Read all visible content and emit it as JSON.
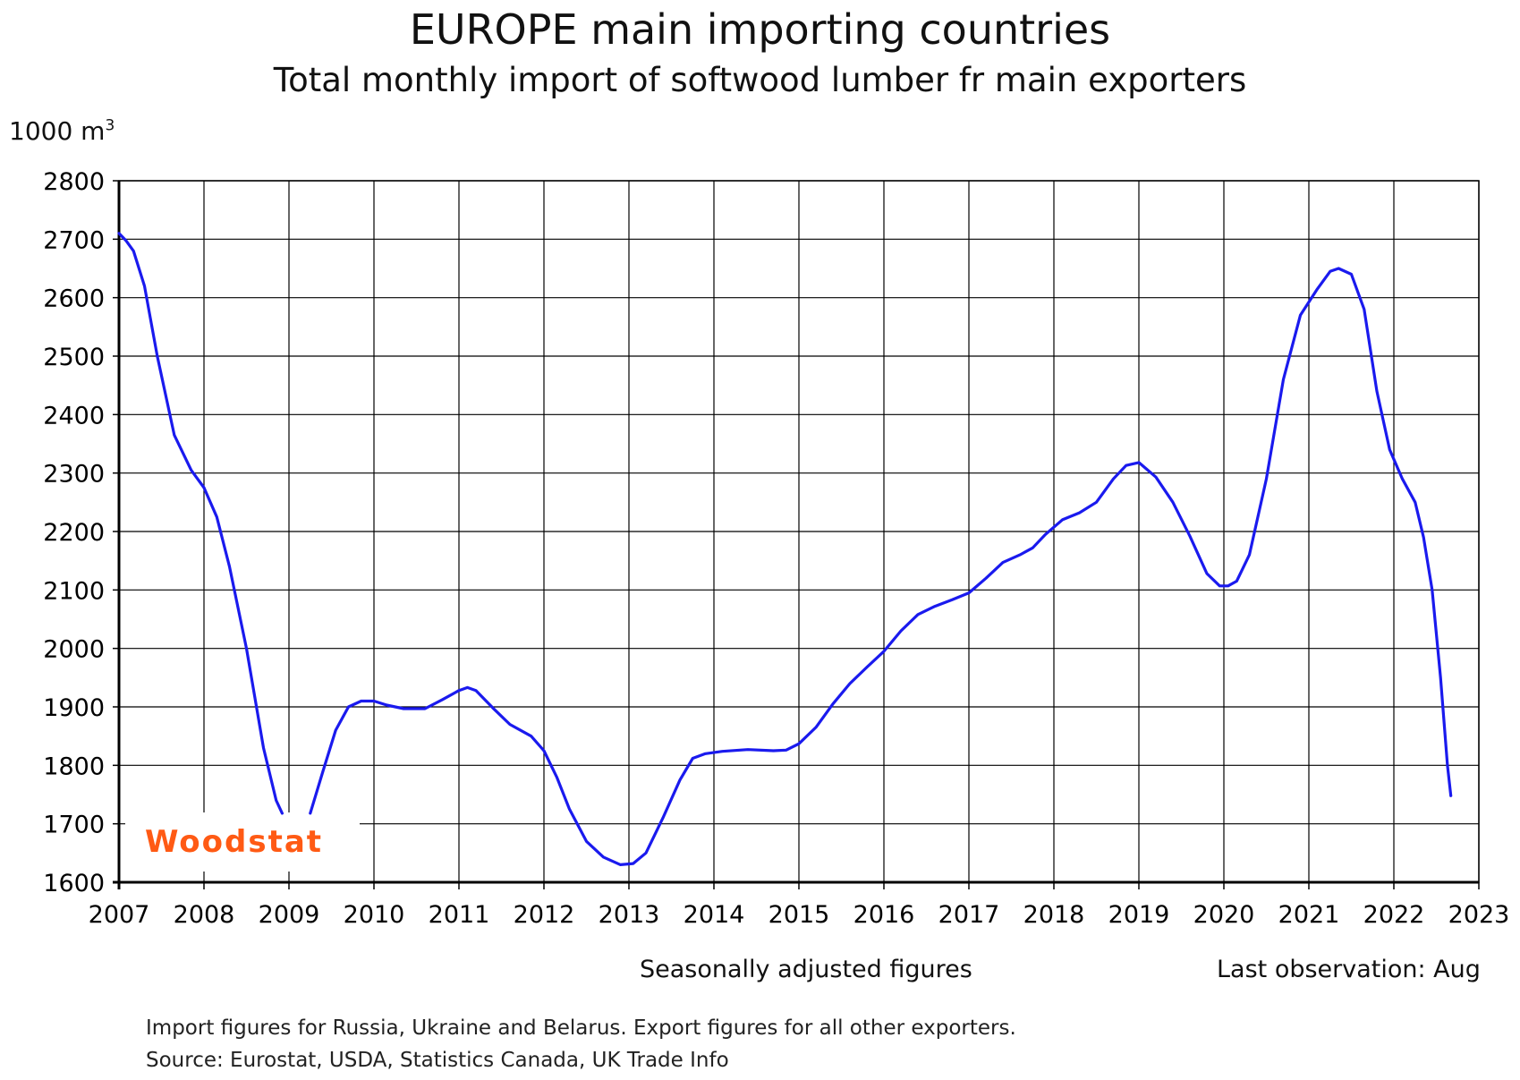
{
  "chart_data": {
    "type": "line",
    "title": "EUROPE main importing countries",
    "subtitle": "Total monthly import of softwood lumber fr main exporters",
    "ylabel": "1000 m",
    "ylabel_superscript": "3",
    "xlim": [
      2007,
      2023
    ],
    "ylim": [
      1600,
      2800
    ],
    "x_ticks": [
      2007,
      2008,
      2009,
      2010,
      2011,
      2012,
      2013,
      2014,
      2015,
      2016,
      2017,
      2018,
      2019,
      2020,
      2021,
      2022,
      2023
    ],
    "y_ticks": [
      1600,
      1700,
      1800,
      1900,
      2000,
      2100,
      2200,
      2300,
      2400,
      2500,
      2600,
      2700,
      2800
    ],
    "grid": true,
    "line_color": "#1a1aee",
    "series": [
      {
        "segments": [
          [
            [
              2007.0,
              2710
            ],
            [
              2007.08,
              2698
            ],
            [
              2007.17,
              2680
            ],
            [
              2007.3,
              2620
            ],
            [
              2007.45,
              2500
            ],
            [
              2007.65,
              2365
            ],
            [
              2007.85,
              2305
            ],
            [
              2008.0,
              2275
            ],
            [
              2008.15,
              2225
            ],
            [
              2008.3,
              2140
            ],
            [
              2008.5,
              2000
            ],
            [
              2008.7,
              1830
            ],
            [
              2008.85,
              1740
            ],
            [
              2008.92,
              1718
            ]
          ],
          [
            [
              2009.25,
              1718
            ],
            [
              2009.4,
              1790
            ],
            [
              2009.55,
              1860
            ],
            [
              2009.7,
              1900
            ],
            [
              2009.85,
              1910
            ],
            [
              2010.0,
              1910
            ],
            [
              2010.15,
              1903
            ],
            [
              2010.35,
              1897
            ],
            [
              2010.6,
              1897
            ],
            [
              2010.8,
              1912
            ],
            [
              2011.0,
              1928
            ],
            [
              2011.1,
              1933
            ],
            [
              2011.2,
              1928
            ],
            [
              2011.4,
              1898
            ],
            [
              2011.6,
              1870
            ],
            [
              2011.85,
              1850
            ],
            [
              2012.0,
              1825
            ],
            [
              2012.15,
              1780
            ],
            [
              2012.3,
              1725
            ],
            [
              2012.5,
              1670
            ],
            [
              2012.7,
              1643
            ],
            [
              2012.9,
              1630
            ],
            [
              2013.05,
              1632
            ],
            [
              2013.2,
              1650
            ],
            [
              2013.4,
              1710
            ],
            [
              2013.6,
              1775
            ],
            [
              2013.75,
              1812
            ],
            [
              2013.9,
              1820
            ],
            [
              2014.1,
              1824
            ],
            [
              2014.4,
              1827
            ],
            [
              2014.7,
              1825
            ],
            [
              2014.85,
              1826
            ],
            [
              2015.0,
              1837
            ],
            [
              2015.2,
              1865
            ],
            [
              2015.4,
              1905
            ],
            [
              2015.6,
              1940
            ],
            [
              2015.8,
              1968
            ],
            [
              2016.0,
              1995
            ],
            [
              2016.2,
              2030
            ],
            [
              2016.4,
              2058
            ],
            [
              2016.6,
              2072
            ],
            [
              2016.8,
              2083
            ],
            [
              2017.0,
              2095
            ],
            [
              2017.2,
              2120
            ],
            [
              2017.4,
              2147
            ],
            [
              2017.6,
              2160
            ],
            [
              2017.75,
              2172
            ],
            [
              2017.9,
              2195
            ],
            [
              2018.1,
              2220
            ],
            [
              2018.3,
              2232
            ],
            [
              2018.5,
              2250
            ],
            [
              2018.7,
              2290
            ],
            [
              2018.85,
              2313
            ],
            [
              2019.0,
              2318
            ],
            [
              2019.2,
              2293
            ],
            [
              2019.4,
              2250
            ],
            [
              2019.6,
              2192
            ],
            [
              2019.8,
              2128
            ],
            [
              2019.95,
              2107
            ],
            [
              2020.05,
              2107
            ],
            [
              2020.15,
              2115
            ],
            [
              2020.3,
              2160
            ],
            [
              2020.5,
              2290
            ],
            [
              2020.7,
              2460
            ],
            [
              2020.9,
              2570
            ],
            [
              2021.1,
              2615
            ],
            [
              2021.25,
              2645
            ],
            [
              2021.35,
              2650
            ],
            [
              2021.5,
              2640
            ],
            [
              2021.65,
              2580
            ],
            [
              2021.8,
              2440
            ],
            [
              2021.95,
              2340
            ],
            [
              2022.1,
              2290
            ],
            [
              2022.25,
              2250
            ],
            [
              2022.35,
              2190
            ],
            [
              2022.45,
              2100
            ],
            [
              2022.55,
              1950
            ],
            [
              2022.63,
              1800
            ],
            [
              2022.67,
              1748
            ]
          ]
        ]
      }
    ]
  },
  "annotations": {
    "seasonal": "Seasonally adjusted figures",
    "last_observation": "Last observation: Aug",
    "note1": "Import figures for Russia, Ukraine and Belarus. Export figures for all other exporters.",
    "note2": "Source: Eurostat, USDA, Statistics Canada, UK Trade Info",
    "logo": "Woodstat"
  }
}
